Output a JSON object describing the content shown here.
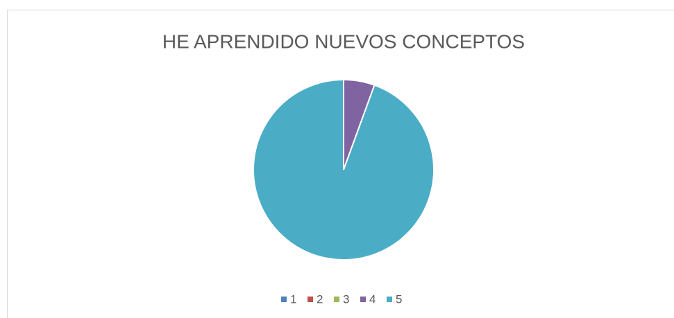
{
  "chart_data": {
    "type": "pie",
    "title": "HE APRENDIDO NUEVOS CONCEPTOS",
    "categories": [
      "1",
      "2",
      "3",
      "4",
      "5"
    ],
    "values": [
      0,
      0,
      0,
      1,
      17
    ],
    "colors": [
      "#4f81bd",
      "#c0504d",
      "#9bbb59",
      "#8064a2",
      "#4bacc6"
    ],
    "legend": "bottom"
  }
}
